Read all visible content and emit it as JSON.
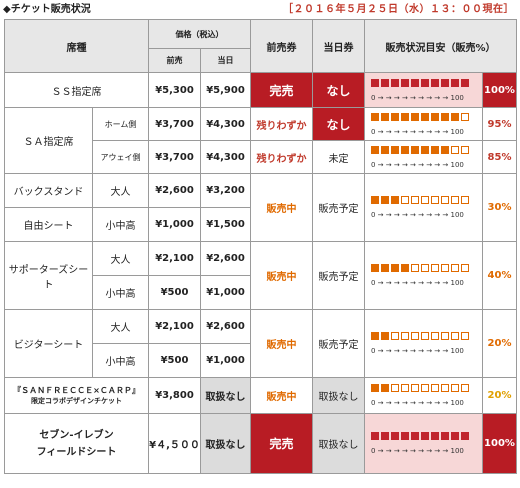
{
  "header": {
    "title": "◆チケット販売状況",
    "date": "［２０１６年５月２５日（水）１３：００現在］"
  },
  "columns": {
    "seat": "席種",
    "price": "価格（税込）",
    "advance": "前売",
    "dayof": "当日",
    "advance_ticket": "前売券",
    "dayof_ticket": "当日券",
    "status": "販売状況目安（販売%）"
  },
  "scale_text": "0 → → → → → → → → → 100",
  "rows": {
    "ss": {
      "name": "ＳＳ指定席",
      "adv": "¥5,300",
      "day": "¥5,900",
      "adv_ticket": "完売",
      "day_ticket": "なし",
      "filled": 10,
      "pct": "100%"
    },
    "sa_home": {
      "name": "ＳＡ指定席",
      "sub": "ホーム側",
      "adv": "¥3,700",
      "day": "¥4,300",
      "adv_ticket": "残りわずか",
      "day_ticket": "なし",
      "filled": 9.5,
      "pct": "95%"
    },
    "sa_away": {
      "sub": "アウェイ側",
      "adv": "¥3,700",
      "day": "¥4,300",
      "adv_ticket": "残りわずか",
      "day_ticket": "未定",
      "filled": 8.5,
      "pct": "85%"
    },
    "back": {
      "name1": "バックスタンド",
      "name2": "自由シート",
      "sub1": "大人",
      "sub2": "小中高",
      "adv1": "¥2,600",
      "day1": "¥3,200",
      "adv2": "¥1,000",
      "day2": "¥1,500",
      "adv_ticket": "販売中",
      "day_ticket": "販売予定",
      "filled": 3,
      "pct": "30%"
    },
    "supporters": {
      "name": "サポーターズシート",
      "sub1": "大人",
      "sub2": "小中高",
      "adv1": "¥2,100",
      "day1": "¥2,600",
      "adv2": "¥500",
      "day2": "¥1,000",
      "adv_ticket": "販売中",
      "day_ticket": "販売予定",
      "filled": 4,
      "pct": "40%"
    },
    "visitor": {
      "name": "ビジターシート",
      "sub1": "大人",
      "sub2": "小中高",
      "adv1": "¥2,100",
      "day1": "¥2,600",
      "adv2": "¥500",
      "day2": "¥1,000",
      "adv_ticket": "販売中",
      "day_ticket": "販売予定",
      "filled": 2,
      "pct": "20%"
    },
    "collab": {
      "name1": "『ＳＡＮＦＲＥＣＣＥ×ＣＡＲＰ』",
      "name2": "限定コラボデザインチケット",
      "adv": "¥3,800",
      "day": "取扱なし",
      "adv_ticket": "販売中",
      "day_ticket": "取扱なし",
      "filled": 2,
      "pct": "20%"
    },
    "seven": {
      "name1": "セブン-イレブン",
      "name2": "フィールドシート",
      "adv": "¥４,５００",
      "day": "取扱なし",
      "adv_ticket": "完売",
      "day_ticket": "取扱なし",
      "filled": 10,
      "pct": "100%"
    }
  }
}
